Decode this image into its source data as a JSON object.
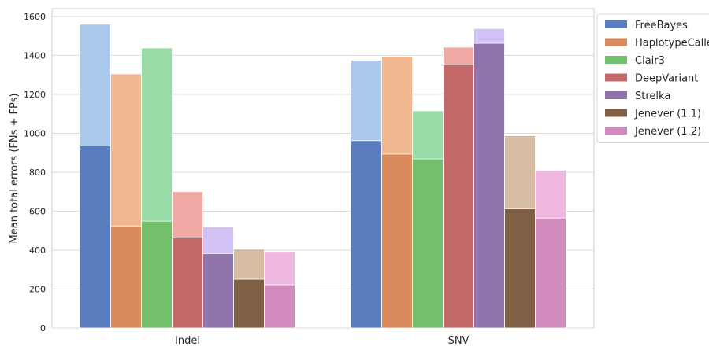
{
  "chart_data": {
    "type": "bar",
    "stacked_overlay": true,
    "categories": [
      "Indel",
      "SNV"
    ],
    "ylabel": "Mean total errors (FNs + FPs)",
    "xlabel": "",
    "ylim": [
      0,
      1640
    ],
    "yticks": [
      0,
      200,
      400,
      600,
      800,
      1000,
      1200,
      1400,
      1600
    ],
    "grid": "horizontal",
    "legend_placement": "outside-top-right",
    "series": [
      {
        "name": "FreeBayes",
        "color": "#5a7dc0",
        "light_color": "#aac8ec",
        "fn": [
          935,
          962
        ],
        "total": [
          1560,
          1375
        ]
      },
      {
        "name": "HaplotypeCaller",
        "color": "#d98a5c",
        "light_color": "#f0b690",
        "fn": [
          524,
          893
        ],
        "total": [
          1305,
          1395
        ]
      },
      {
        "name": "Clair3",
        "color": "#72bf6c",
        "light_color": "#98dba6",
        "fn": [
          549,
          868
        ],
        "total": [
          1438,
          1115
        ]
      },
      {
        "name": "DeepVariant",
        "color": "#c46a6a",
        "light_color": "#f0a9a4",
        "fn": [
          463,
          1352
        ],
        "total": [
          700,
          1442
        ]
      },
      {
        "name": "Strelka",
        "color": "#9173ac",
        "light_color": "#d3c3f5",
        "fn": [
          382,
          1462
        ],
        "total": [
          520,
          1538
        ]
      },
      {
        "name": "Jenever (1.1)",
        "color": "#7f6045",
        "light_color": "#d6bca2",
        "fn": [
          250,
          612
        ],
        "total": [
          405,
          988
        ]
      },
      {
        "name": "Jenever (1.2)",
        "color": "#d18bbd",
        "light_color": "#f0b8e0",
        "fn": [
          222,
          565
        ],
        "total": [
          393,
          810
        ]
      }
    ]
  }
}
